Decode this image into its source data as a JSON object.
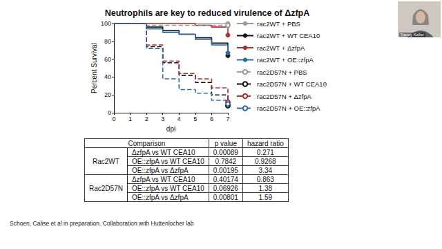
{
  "chart_data": {
    "type": "line",
    "title": "Neutrophils are key to reduced virulence of ΔzfpA",
    "x_label": "dpi",
    "y_label": "Percent Survival",
    "x": [
      0,
      1,
      2,
      3,
      4,
      5,
      6,
      7
    ],
    "xlim": [
      0,
      7
    ],
    "xticks": [
      0,
      1,
      2,
      3,
      4,
      5,
      6,
      7
    ],
    "ylim": [
      0,
      100
    ],
    "yticks": [
      0,
      20,
      40,
      60,
      80,
      100
    ],
    "grid": false,
    "legend": "right",
    "series": [
      {
        "name": "rac2WT + PBS",
        "color": "#9a9a9a",
        "marker": "circle",
        "line_style": "solid",
        "values": [
          100,
          100,
          100,
          100,
          100,
          100,
          100,
          100
        ]
      },
      {
        "name": "rac2WT + WT CEA10",
        "color": "#111111",
        "marker": "circle",
        "line_style": "solid",
        "values": [
          100,
          100,
          96,
          92,
          88,
          84,
          78,
          64
        ]
      },
      {
        "name": "rac2WT + ΔzfpA",
        "color": "#a8302c",
        "marker": "circle",
        "line_style": "solid",
        "values": [
          100,
          100,
          100,
          100,
          100,
          98,
          96,
          87
        ]
      },
      {
        "name": "rac2WT + OE::zfpA",
        "color": "#2f6aa8",
        "marker": "circle",
        "line_style": "solid",
        "values": [
          100,
          100,
          94,
          90,
          88,
          82,
          76,
          67
        ]
      },
      {
        "name": "rac2D57N + PBS",
        "color": "#9a9a9a",
        "marker": "emptyCircle",
        "line_style": "dashed",
        "values": [
          100,
          100,
          98,
          98,
          98,
          98,
          98,
          98
        ]
      },
      {
        "name": "rac2D57N + WT CEA10",
        "color": "#111111",
        "marker": "emptyCircle",
        "line_style": "dashed",
        "values": [
          100,
          100,
          74,
          56,
          42,
          34,
          20,
          8
        ]
      },
      {
        "name": "rac2D57N + ΔzfpA",
        "color": "#a8302c",
        "marker": "emptyCircle",
        "line_style": "dashed",
        "values": [
          100,
          100,
          76,
          58,
          44,
          38,
          28,
          12
        ]
      },
      {
        "name": "rac2D57N + OE::zfpA",
        "color": "#2f6aa8",
        "marker": "emptyCircle",
        "line_style": "dashed",
        "values": [
          100,
          100,
          72,
          38,
          26,
          22,
          14,
          10
        ]
      }
    ]
  },
  "table": {
    "header": [
      "Comparison",
      "p value",
      "hazard ratio"
    ],
    "groups": [
      {
        "name": "Rac2WT",
        "rows": [
          [
            "ΔzfpA vs WT CEA10",
            "0.00089",
            "0.271"
          ],
          [
            "OE::zfpA vs WT CEA10",
            "0.7842",
            "0.9268"
          ],
          [
            "OE::zfpA vs ΔzfpA",
            "0.00195",
            "3.34"
          ]
        ]
      },
      {
        "name": "Rac2D57N",
        "rows": [
          [
            "ΔzfpA vs WT CEA10",
            "0.40174",
            "0.863"
          ],
          [
            "OE::zfpA vs WT CEA10",
            "0.06926",
            "1.38"
          ],
          [
            "OE::zfpA vs ΔzfpA",
            "0.00801",
            "1.59"
          ]
        ]
      }
    ]
  },
  "footnote": "Schoen, Calise et al in preparation. Collaboration with Huttenlocher lab",
  "presenter": "Nancy Keller"
}
